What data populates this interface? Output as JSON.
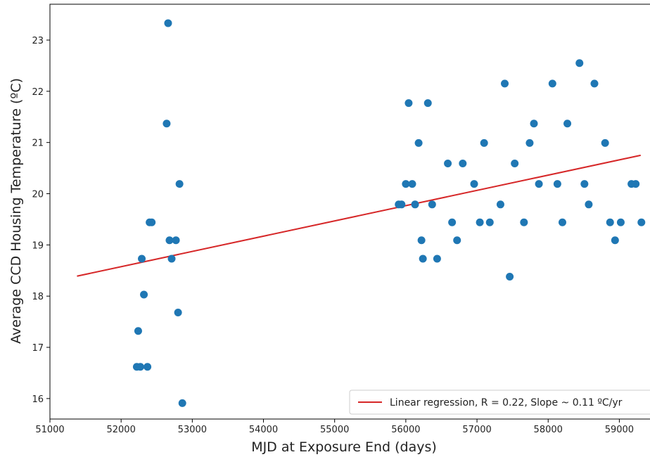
{
  "chart_data": {
    "type": "scatter",
    "xlabel": "MJD at Exposure End (days)",
    "ylabel": "Average CCD Housing Temperature (ºC)",
    "xlim": [
      51000,
      59500
    ],
    "ylim": [
      15.6,
      23.7
    ],
    "x_ticks": [
      51000,
      52000,
      53000,
      54000,
      55000,
      56000,
      57000,
      58000,
      59000
    ],
    "y_ticks": [
      16,
      17,
      18,
      19,
      20,
      21,
      22,
      23
    ],
    "grid": false,
    "legend_position": "lower-right",
    "colors": {
      "points": "#1f77b4",
      "regression": "#d62728"
    },
    "series": [
      {
        "kind": "points",
        "x": [
          52220,
          52240,
          52270,
          52290,
          52320,
          52370,
          52400,
          52430,
          52640,
          52660,
          52680,
          52710,
          52770,
          52800,
          52820,
          52860,
          55900,
          55940,
          56000,
          56040,
          56090,
          56130,
          56180,
          56220,
          56240,
          56310,
          56370,
          56440,
          56590,
          56650,
          56720,
          56800,
          56960,
          57040,
          57100,
          57180,
          57330,
          57390,
          57460,
          57530,
          57660,
          57740,
          57800,
          57870,
          58060,
          58130,
          58200,
          58270,
          58440,
          58510,
          58570,
          58650,
          58800,
          58870,
          58940,
          59020,
          59170,
          59230,
          59310
        ],
        "y": [
          16.62,
          17.32,
          16.62,
          18.73,
          18.03,
          16.62,
          19.44,
          19.44,
          21.37,
          23.33,
          19.09,
          18.73,
          19.09,
          17.68,
          20.19,
          15.91,
          19.79,
          19.79,
          20.19,
          21.77,
          20.19,
          19.79,
          20.99,
          19.09,
          18.73,
          21.77,
          19.79,
          18.73,
          20.59,
          19.44,
          19.09,
          20.59,
          20.19,
          19.44,
          20.99,
          19.44,
          19.79,
          22.15,
          18.38,
          20.59,
          19.44,
          20.99,
          21.37,
          20.19,
          22.15,
          20.19,
          19.44,
          21.37,
          22.55,
          20.19,
          19.79,
          22.15,
          20.99,
          19.44,
          19.09,
          19.44,
          20.19,
          20.19,
          19.44
        ]
      },
      {
        "kind": "line",
        "name": "Linear regression, R = 0.22, Slope ~ 0.11 ºC/yr",
        "x": [
          51380,
          59300
        ],
        "y": [
          18.39,
          20.75
        ]
      }
    ]
  }
}
